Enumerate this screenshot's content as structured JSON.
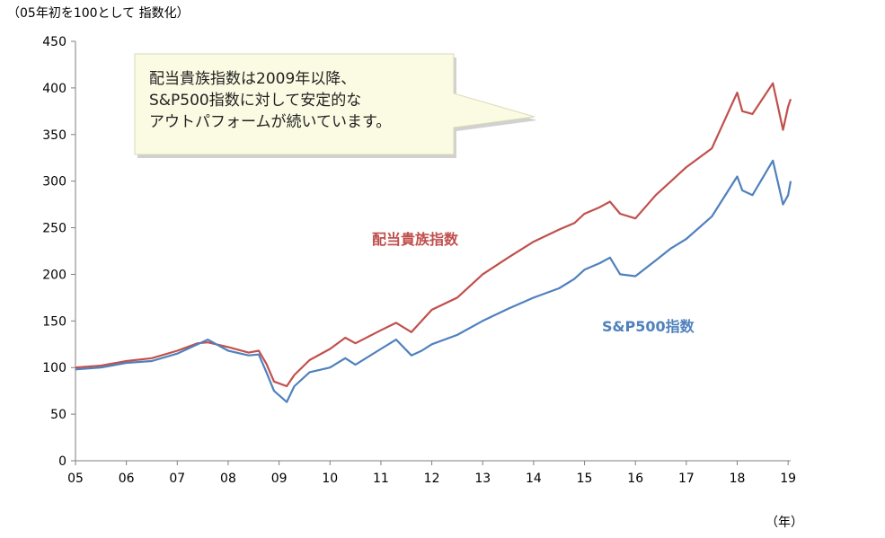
{
  "unit_label": "（05年初を100として 指数化）",
  "x_unit_label": "（年）",
  "callout": {
    "lines": [
      "配当貴族指数は2009年以降、",
      "S&P500指数に対して安定的な",
      "アウトパフォームが続いています。"
    ]
  },
  "colors": {
    "aristocrats": "#c0504d",
    "sp500": "#4f81bd",
    "callout_fill": "#fbfbe3",
    "axis": "#7f7f7f"
  },
  "chart_data": {
    "type": "line",
    "title": "",
    "xlabel": "（年）",
    "ylabel": "（05年初を100として 指数化）",
    "xlim": [
      2005,
      2019.05
    ],
    "ylim": [
      0,
      450
    ],
    "yticks": [
      0,
      50,
      100,
      150,
      200,
      250,
      300,
      350,
      400,
      450
    ],
    "yticklabels": [
      "0",
      "50",
      "100",
      "150",
      "200",
      "250",
      "300",
      "350",
      "400",
      "450"
    ],
    "xticks": [
      2005,
      2006,
      2007,
      2008,
      2009,
      2010,
      2011,
      2012,
      2013,
      2014,
      2015,
      2016,
      2017,
      2018,
      2019
    ],
    "xticklabels": [
      "05",
      "06",
      "07",
      "08",
      "09",
      "10",
      "11",
      "12",
      "13",
      "14",
      "15",
      "16",
      "17",
      "18",
      "19"
    ],
    "grid": false,
    "series": [
      {
        "name": "配当貴族指数",
        "color": "#c0504d",
        "x": [
          2005.0,
          2005.5,
          2006.0,
          2006.5,
          2007.0,
          2007.4,
          2007.6,
          2008.0,
          2008.4,
          2008.6,
          2008.75,
          2008.9,
          2009.15,
          2009.3,
          2009.6,
          2010.0,
          2010.3,
          2010.5,
          2011.0,
          2011.3,
          2011.6,
          2011.8,
          2012.0,
          2012.5,
          2013.0,
          2013.5,
          2014.0,
          2014.5,
          2014.8,
          2015.0,
          2015.3,
          2015.5,
          2015.7,
          2016.0,
          2016.4,
          2016.7,
          2017.0,
          2017.5,
          2018.0,
          2018.1,
          2018.3,
          2018.7,
          2018.9,
          2019.0,
          2019.05
        ],
        "y": [
          100,
          102,
          107,
          110,
          118,
          126,
          127,
          122,
          116,
          118,
          104,
          85,
          80,
          92,
          108,
          120,
          132,
          126,
          140,
          148,
          138,
          150,
          162,
          175,
          200,
          218,
          235,
          248,
          255,
          265,
          272,
          278,
          265,
          260,
          285,
          300,
          315,
          335,
          395,
          375,
          372,
          405,
          355,
          380,
          388
        ]
      },
      {
        "name": "S&P500指数",
        "color": "#4f81bd",
        "x": [
          2005.0,
          2005.5,
          2006.0,
          2006.5,
          2007.0,
          2007.4,
          2007.6,
          2008.0,
          2008.4,
          2008.6,
          2008.75,
          2008.9,
          2009.15,
          2009.3,
          2009.6,
          2010.0,
          2010.3,
          2010.5,
          2011.0,
          2011.3,
          2011.6,
          2011.8,
          2012.0,
          2012.5,
          2013.0,
          2013.5,
          2014.0,
          2014.5,
          2014.8,
          2015.0,
          2015.3,
          2015.5,
          2015.7,
          2016.0,
          2016.4,
          2016.7,
          2017.0,
          2017.5,
          2018.0,
          2018.1,
          2018.3,
          2018.7,
          2018.9,
          2019.0,
          2019.05
        ],
        "y": [
          98,
          100,
          105,
          107,
          115,
          125,
          130,
          118,
          113,
          114,
          95,
          75,
          63,
          80,
          95,
          100,
          110,
          103,
          120,
          130,
          113,
          118,
          125,
          135,
          150,
          163,
          175,
          185,
          195,
          205,
          212,
          218,
          200,
          198,
          215,
          228,
          238,
          262,
          305,
          290,
          285,
          322,
          275,
          285,
          300
        ]
      }
    ]
  }
}
